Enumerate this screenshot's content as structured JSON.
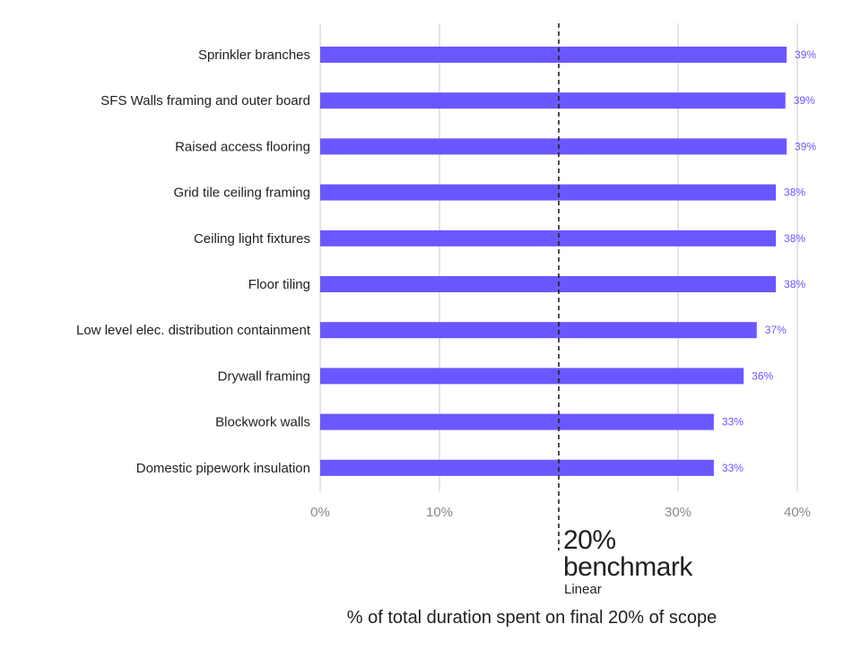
{
  "chart_data": {
    "type": "bar",
    "orientation": "horizontal",
    "categories": [
      "Sprinkler branches",
      "SFS Walls framing and outer board",
      "Raised access flooring",
      "Grid tile ceiling framing",
      "Ceiling light fixtures",
      "Floor tiling",
      "Low level elec. distribution containment",
      "Drywall framing",
      "Blockwork walls",
      "Domestic pipework insulation"
    ],
    "values": [
      39.1,
      39.0,
      39.1,
      38.2,
      38.2,
      38.2,
      36.6,
      35.5,
      33.0,
      33.0
    ],
    "value_labels": [
      "39%",
      "39%",
      "39%",
      "38%",
      "38%",
      "38%",
      "37%",
      "36%",
      "33%",
      "33%"
    ],
    "xlim": [
      0,
      40
    ],
    "x_ticks": [
      {
        "value": 0,
        "label": "0%"
      },
      {
        "value": 10,
        "label": "10%"
      },
      {
        "value": 30,
        "label": "30%"
      },
      {
        "value": 40,
        "label": "40%"
      }
    ],
    "xlabel": "% of total duration spent on final 20% of scope",
    "grid": true,
    "bar_color": "#6b57ff",
    "benchmark": {
      "value": 20,
      "title_line1": "20%",
      "title_line2": "benchmark",
      "subtitle": "Linear"
    }
  }
}
